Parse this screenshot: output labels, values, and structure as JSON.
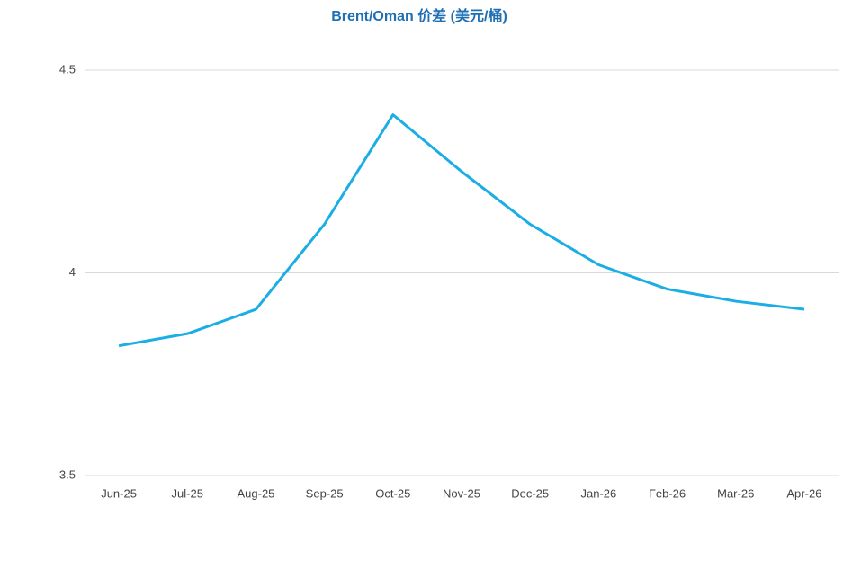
{
  "chart_data": {
    "type": "line",
    "title": "Brent/Oman 价差 (美元/桶)",
    "categories": [
      "Jun-25",
      "Jul-25",
      "Aug-25",
      "Sep-25",
      "Oct-25",
      "Nov-25",
      "Dec-25",
      "Jan-26",
      "Feb-26",
      "Mar-26",
      "Apr-26"
    ],
    "values": [
      3.82,
      3.85,
      3.91,
      4.12,
      4.39,
      4.25,
      4.12,
      4.02,
      3.96,
      3.93,
      3.91
    ],
    "color": "#1aaee5",
    "ylim": [
      3.5,
      4.5
    ],
    "yticks": [
      3.5,
      4,
      4.5
    ],
    "grid": true
  }
}
